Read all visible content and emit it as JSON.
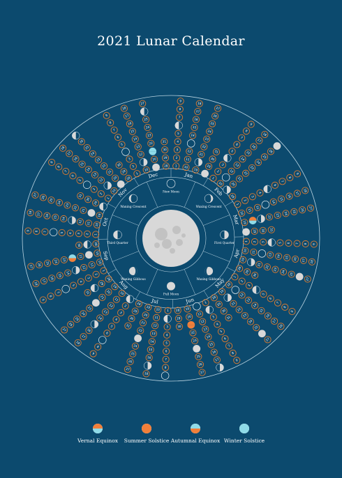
{
  "title": "2021 Lunar Calendar",
  "colors": {
    "background": "#0c4a6e",
    "ring_stroke": "#b9d3e0",
    "day_ring": "#e07b2e",
    "moon": "#d8d8d8",
    "accent_orange": "#f07f3a",
    "accent_cyan": "#8fdbe8"
  },
  "months": [
    "Jan",
    "Feb",
    "Mar",
    "Apr",
    "May",
    "Jun",
    "Jul",
    "Aug",
    "Sep",
    "Oct",
    "Nov",
    "Dec"
  ],
  "month_lengths": [
    31,
    28,
    31,
    30,
    31,
    30,
    31,
    31,
    30,
    31,
    30,
    31
  ],
  "phases": [
    {
      "name": "New Moon",
      "icon": "new-moon-icon"
    },
    {
      "name": "Waxing Crescent",
      "icon": "waxing-crescent-icon"
    },
    {
      "name": "First Quarter",
      "icon": "first-quarter-icon"
    },
    {
      "name": "Waxing Gibbous",
      "icon": "waxing-gibbous-icon"
    },
    {
      "name": "Full Moon",
      "icon": "full-moon-icon"
    },
    {
      "name": "Waning Gibbous",
      "icon": "waning-gibbous-icon"
    },
    {
      "name": "Third Quarter",
      "icon": "third-quarter-icon"
    },
    {
      "name": "Waning Crescent",
      "icon": "waning-crescent-icon"
    }
  ],
  "legend": [
    {
      "label": "Vernal Equinox",
      "icon": "vernal-equinox-icon",
      "top": "#f07f3a",
      "bottom": "#8fdbe8"
    },
    {
      "label": "Summer Solstice",
      "icon": "summer-solstice-icon",
      "top": "#f07f3a",
      "bottom": "#f07f3a"
    },
    {
      "label": "Autumnal Equinox",
      "icon": "autumnal-equinox-icon",
      "top": "#8fdbe8",
      "bottom": "#f07f3a"
    },
    {
      "label": "Winter Solstice",
      "icon": "winter-solstice-icon",
      "top": "#8fdbe8",
      "bottom": "#8fdbe8"
    }
  ],
  "moon_phase_days": {
    "new": [
      13,
      42,
      72,
      102,
      131,
      161,
      190,
      219,
      249,
      279,
      308,
      338
    ],
    "first_quarter": [
      20,
      50,
      80,
      110,
      140,
      169,
      198,
      227,
      256,
      286,
      315,
      345
    ],
    "full": [
      28,
      58,
      87,
      116,
      146,
      175,
      204,
      234,
      263,
      293,
      323,
      353
    ],
    "third_quarter": [
      6,
      35,
      64,
      94,
      124,
      153,
      183,
      213,
      242,
      272,
      301,
      331,
      360
    ]
  },
  "special_days": {
    "vernal_equinox": 79,
    "summer_solstice": 172,
    "autumnal_equinox": 265,
    "winter_solstice": 355
  }
}
